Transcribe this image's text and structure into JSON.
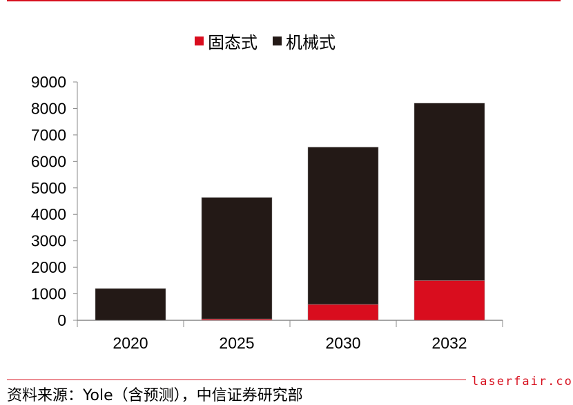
{
  "chart_data": {
    "type": "bar",
    "stacked": true,
    "categories": [
      "2020",
      "2025",
      "2030",
      "2032"
    ],
    "series": [
      {
        "name": "固态式",
        "color": "#d90d1e",
        "values": [
          0,
          50,
          600,
          1500
        ]
      },
      {
        "name": "机械式",
        "color": "#231916",
        "values": [
          1200,
          4590,
          5940,
          6700
        ]
      }
    ],
    "title": "",
    "xlabel": "",
    "ylabel": "",
    "ylim": [
      0,
      9000
    ],
    "yticks": [
      "0",
      "1000",
      "2000",
      "3000",
      "4000",
      "5000",
      "6000",
      "7000",
      "8000",
      "9000"
    ],
    "grid": false,
    "legend_position": "top-center"
  },
  "source": "资料来源：Yole（含预测），中信证券研究部",
  "watermark": "laserfair.com"
}
